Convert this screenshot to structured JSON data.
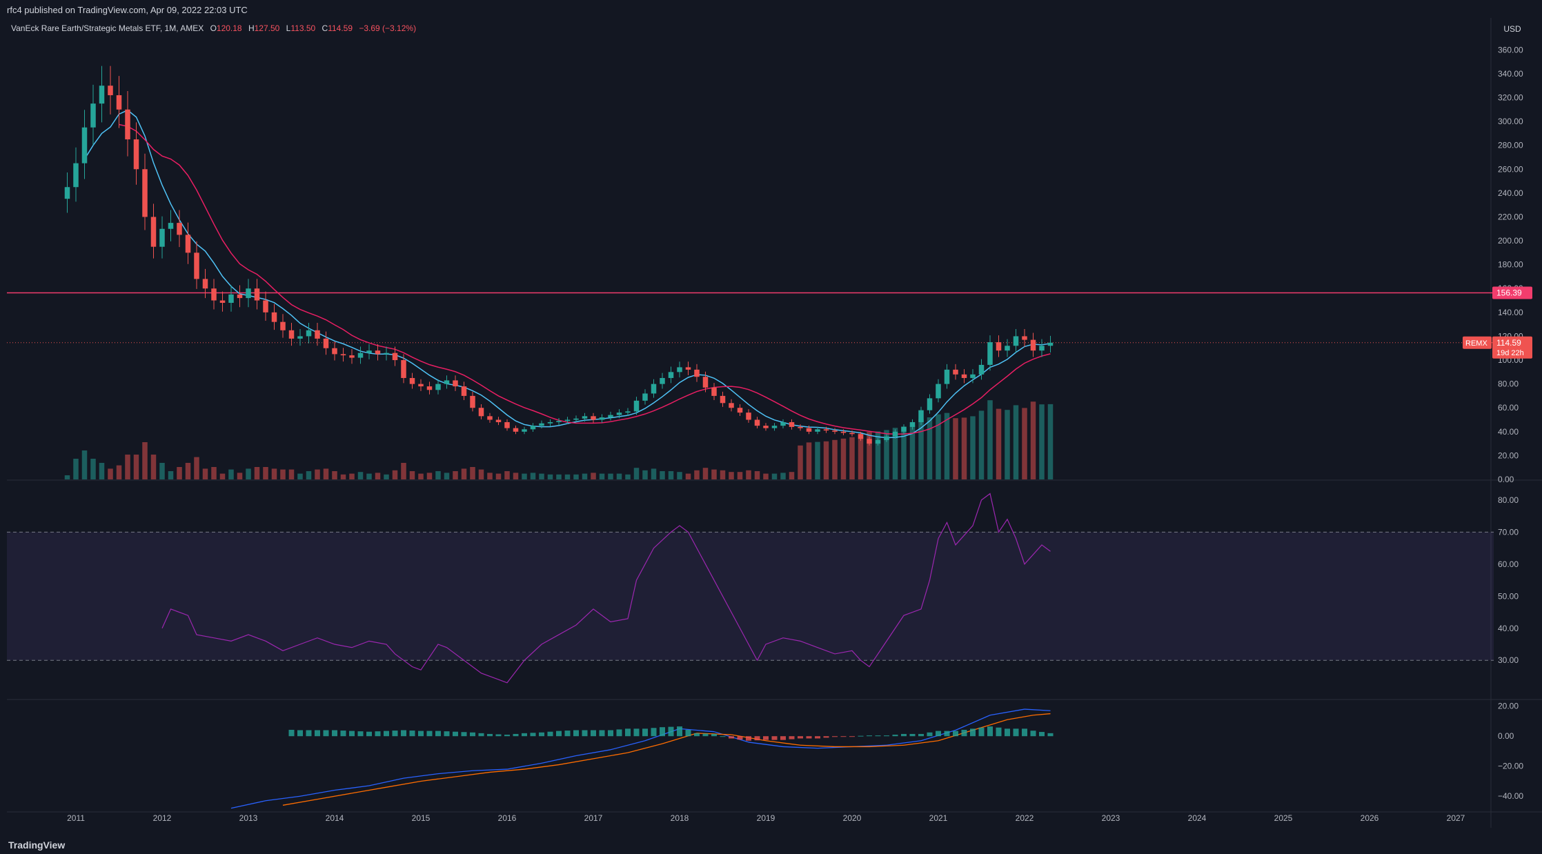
{
  "header": {
    "published": "rfc4 published on TradingView.com, Apr 09, 2022 22:03 UTC"
  },
  "legend": {
    "title": "VanEck Rare Earth/Strategic Metals ETF, 1M, AMEX",
    "o_label": "O",
    "o": "120.18",
    "h_label": "H",
    "h": "127.50",
    "l_label": "L",
    "l": "113.50",
    "c_label": "C",
    "c": "114.59",
    "change": "−3.69 (−3.12%)"
  },
  "footer": {
    "brand": "TradingView"
  },
  "colors": {
    "bg": "#131722",
    "up": "#26a69a",
    "down": "#ef5350",
    "rsi": "#9c27b0",
    "level_line": "#f23d6d"
  },
  "chart_data": [
    {
      "type": "candlestick",
      "title": "VanEck Rare Earth/Strategic Metals ETF, 1M, AMEX",
      "currency": "USD",
      "y_ticks": [
        "360.00",
        "340.00",
        "320.00",
        "300.00",
        "280.00",
        "260.00",
        "240.00",
        "220.00",
        "200.00",
        "180.00",
        "160.00",
        "140.00",
        "120.00",
        "100.00",
        "80.00",
        "60.00",
        "40.00",
        "20.00",
        "0.00"
      ],
      "ylim": [
        0,
        370
      ],
      "x_ticks": [
        "2011",
        "2012",
        "2013",
        "2014",
        "2015",
        "2016",
        "2017",
        "2018",
        "2019",
        "2020",
        "2021",
        "2022",
        "2023",
        "2024",
        "2025",
        "2026",
        "2027"
      ],
      "xlim": [
        2010.2,
        2027.4
      ],
      "horizontal_level": {
        "value": 156.39,
        "label": "156.39"
      },
      "last_price": {
        "value": 114.59,
        "label": "114.59",
        "symbol": "REMX",
        "countdown": "19d 22h"
      },
      "closes": [
        [
          2010.9,
          245
        ],
        [
          2011.0,
          265
        ],
        [
          2011.1,
          295
        ],
        [
          2011.2,
          315
        ],
        [
          2011.3,
          330
        ],
        [
          2011.4,
          322
        ],
        [
          2011.5,
          310
        ],
        [
          2011.6,
          285
        ],
        [
          2011.7,
          260
        ],
        [
          2011.8,
          220
        ],
        [
          2011.9,
          195
        ],
        [
          2012.0,
          210
        ],
        [
          2012.1,
          215
        ],
        [
          2012.2,
          205
        ],
        [
          2012.3,
          190
        ],
        [
          2012.4,
          168
        ],
        [
          2012.5,
          160
        ],
        [
          2012.6,
          150
        ],
        [
          2012.7,
          148
        ],
        [
          2012.8,
          155
        ],
        [
          2012.9,
          152
        ],
        [
          2013.0,
          160
        ],
        [
          2013.1,
          150
        ],
        [
          2013.2,
          140
        ],
        [
          2013.3,
          132
        ],
        [
          2013.4,
          125
        ],
        [
          2013.5,
          118
        ],
        [
          2013.6,
          120
        ],
        [
          2013.7,
          125
        ],
        [
          2013.8,
          118
        ],
        [
          2013.9,
          110
        ],
        [
          2014.0,
          105
        ],
        [
          2014.1,
          104
        ],
        [
          2014.2,
          102
        ],
        [
          2014.3,
          106
        ],
        [
          2014.4,
          108
        ],
        [
          2014.5,
          105
        ],
        [
          2014.6,
          106
        ],
        [
          2014.7,
          100
        ],
        [
          2014.8,
          85
        ],
        [
          2014.9,
          80
        ],
        [
          2015.0,
          78
        ],
        [
          2015.1,
          75
        ],
        [
          2015.2,
          80
        ],
        [
          2015.3,
          83
        ],
        [
          2015.4,
          78
        ],
        [
          2015.5,
          70
        ],
        [
          2015.6,
          60
        ],
        [
          2015.7,
          53
        ],
        [
          2015.8,
          50
        ],
        [
          2015.9,
          48
        ],
        [
          2016.0,
          43
        ],
        [
          2016.1,
          40
        ],
        [
          2016.2,
          42
        ],
        [
          2016.3,
          45
        ],
        [
          2016.4,
          47
        ],
        [
          2016.5,
          48
        ],
        [
          2016.6,
          49
        ],
        [
          2016.7,
          50
        ],
        [
          2016.8,
          51
        ],
        [
          2016.9,
          53
        ],
        [
          2017.0,
          50
        ],
        [
          2017.1,
          52
        ],
        [
          2017.2,
          54
        ],
        [
          2017.3,
          56
        ],
        [
          2017.4,
          57
        ],
        [
          2017.5,
          66
        ],
        [
          2017.6,
          72
        ],
        [
          2017.7,
          80
        ],
        [
          2017.8,
          85
        ],
        [
          2017.9,
          90
        ],
        [
          2018.0,
          94
        ],
        [
          2018.1,
          92
        ],
        [
          2018.2,
          86
        ],
        [
          2018.3,
          77
        ],
        [
          2018.4,
          70
        ],
        [
          2018.5,
          64
        ],
        [
          2018.6,
          60
        ],
        [
          2018.7,
          56
        ],
        [
          2018.8,
          50
        ],
        [
          2018.9,
          45
        ],
        [
          2019.0,
          43
        ],
        [
          2019.1,
          45
        ],
        [
          2019.2,
          48
        ],
        [
          2019.3,
          44
        ],
        [
          2019.4,
          43
        ],
        [
          2019.5,
          40
        ],
        [
          2019.6,
          42
        ],
        [
          2019.7,
          41
        ],
        [
          2019.8,
          40
        ],
        [
          2019.9,
          39
        ],
        [
          2020.0,
          38
        ],
        [
          2020.1,
          34
        ],
        [
          2020.2,
          30
        ],
        [
          2020.3,
          33
        ],
        [
          2020.4,
          36
        ],
        [
          2020.5,
          40
        ],
        [
          2020.6,
          44
        ],
        [
          2020.7,
          48
        ],
        [
          2020.8,
          58
        ],
        [
          2020.9,
          68
        ],
        [
          2021.0,
          80
        ],
        [
          2021.1,
          92
        ],
        [
          2021.2,
          88
        ],
        [
          2021.3,
          85
        ],
        [
          2021.4,
          88
        ],
        [
          2021.5,
          96
        ],
        [
          2021.6,
          115
        ],
        [
          2021.7,
          108
        ],
        [
          2021.8,
          112
        ],
        [
          2021.9,
          120
        ],
        [
          2022.0,
          117
        ],
        [
          2022.1,
          108
        ],
        [
          2022.2,
          112
        ],
        [
          2022.3,
          114.59
        ]
      ],
      "volume_axis": true
    },
    {
      "type": "line",
      "name": "RSI",
      "y_ticks": [
        "80.00",
        "70.00",
        "60.00",
        "50.00",
        "40.00",
        "30.00"
      ],
      "bands": [
        30,
        70
      ],
      "ylim": [
        18,
        86
      ],
      "values": [
        [
          2012.0,
          40
        ],
        [
          2012.1,
          46
        ],
        [
          2012.3,
          44
        ],
        [
          2012.4,
          38
        ],
        [
          2012.6,
          37
        ],
        [
          2012.8,
          36
        ],
        [
          2013.0,
          38
        ],
        [
          2013.2,
          36
        ],
        [
          2013.4,
          33
        ],
        [
          2013.6,
          35
        ],
        [
          2013.8,
          37
        ],
        [
          2014.0,
          35
        ],
        [
          2014.2,
          34
        ],
        [
          2014.4,
          36
        ],
        [
          2014.6,
          35
        ],
        [
          2014.7,
          32
        ],
        [
          2014.9,
          28
        ],
        [
          2015.0,
          27
        ],
        [
          2015.2,
          35
        ],
        [
          2015.3,
          34
        ],
        [
          2015.5,
          30
        ],
        [
          2015.7,
          26
        ],
        [
          2015.9,
          24
        ],
        [
          2016.0,
          23
        ],
        [
          2016.2,
          30
        ],
        [
          2016.4,
          35
        ],
        [
          2016.6,
          38
        ],
        [
          2016.8,
          41
        ],
        [
          2017.0,
          46
        ],
        [
          2017.2,
          42
        ],
        [
          2017.4,
          43
        ],
        [
          2017.5,
          55
        ],
        [
          2017.7,
          65
        ],
        [
          2017.9,
          70
        ],
        [
          2018.0,
          72
        ],
        [
          2018.1,
          70
        ],
        [
          2018.3,
          60
        ],
        [
          2018.5,
          50
        ],
        [
          2018.7,
          40
        ],
        [
          2018.9,
          30
        ],
        [
          2019.0,
          35
        ],
        [
          2019.2,
          37
        ],
        [
          2019.4,
          36
        ],
        [
          2019.6,
          34
        ],
        [
          2019.8,
          32
        ],
        [
          2020.0,
          33
        ],
        [
          2020.1,
          30
        ],
        [
          2020.2,
          28
        ],
        [
          2020.4,
          36
        ],
        [
          2020.6,
          44
        ],
        [
          2020.8,
          46
        ],
        [
          2020.9,
          55
        ],
        [
          2021.0,
          68
        ],
        [
          2021.1,
          73
        ],
        [
          2021.2,
          66
        ],
        [
          2021.4,
          72
        ],
        [
          2021.5,
          80
        ],
        [
          2021.6,
          82
        ],
        [
          2021.7,
          70
        ],
        [
          2021.8,
          74
        ],
        [
          2021.9,
          68
        ],
        [
          2022.0,
          60
        ],
        [
          2022.2,
          66
        ],
        [
          2022.3,
          64
        ]
      ]
    },
    {
      "type": "line",
      "name": "MACD",
      "y_ticks": [
        "20.00",
        "0.00",
        "−20.00",
        "−40.00"
      ],
      "ylim": [
        -50,
        24
      ],
      "macd_line": [
        [
          2012.8,
          -48
        ],
        [
          2013.2,
          -43
        ],
        [
          2013.6,
          -40
        ],
        [
          2014.0,
          -36
        ],
        [
          2014.4,
          -33
        ],
        [
          2014.8,
          -28
        ],
        [
          2015.2,
          -25
        ],
        [
          2015.6,
          -23
        ],
        [
          2016.0,
          -22
        ],
        [
          2016.4,
          -18
        ],
        [
          2016.8,
          -13
        ],
        [
          2017.2,
          -9
        ],
        [
          2017.6,
          -3
        ],
        [
          2018.0,
          5
        ],
        [
          2018.4,
          3
        ],
        [
          2018.8,
          -4
        ],
        [
          2019.2,
          -7
        ],
        [
          2019.6,
          -8
        ],
        [
          2020.0,
          -7
        ],
        [
          2020.4,
          -6
        ],
        [
          2020.8,
          -3
        ],
        [
          2021.2,
          4
        ],
        [
          2021.6,
          14
        ],
        [
          2022.0,
          18
        ],
        [
          2022.3,
          17
        ]
      ],
      "signal_line": [
        [
          2013.4,
          -46
        ],
        [
          2013.8,
          -42
        ],
        [
          2014.2,
          -38
        ],
        [
          2014.6,
          -34
        ],
        [
          2015.0,
          -30
        ],
        [
          2015.4,
          -27
        ],
        [
          2015.8,
          -24
        ],
        [
          2016.2,
          -22
        ],
        [
          2016.6,
          -19
        ],
        [
          2017.0,
          -15
        ],
        [
          2017.4,
          -11
        ],
        [
          2017.8,
          -5
        ],
        [
          2018.2,
          2
        ],
        [
          2018.6,
          1
        ],
        [
          2019.0,
          -3
        ],
        [
          2019.4,
          -6
        ],
        [
          2019.8,
          -7
        ],
        [
          2020.2,
          -7
        ],
        [
          2020.6,
          -6
        ],
        [
          2021.0,
          -3
        ],
        [
          2021.4,
          4
        ],
        [
          2021.8,
          11
        ],
        [
          2022.1,
          14
        ],
        [
          2022.3,
          15
        ]
      ]
    }
  ]
}
